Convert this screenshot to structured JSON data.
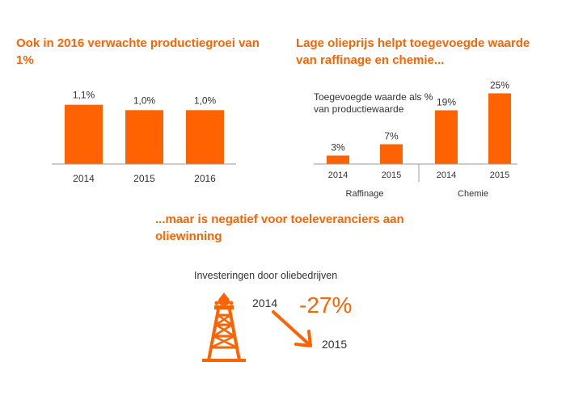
{
  "colors": {
    "accent": "#ff6200",
    "text": "#333333",
    "axis": "#999999"
  },
  "headings": {
    "growth": "Ook in 2016 verwachte productiegroei van 1%",
    "refining": "Lage olieprijs helpt toegevoegde waarde van raffinage en chemie...",
    "suppliers": "...maar is negatief voor toeleveranciers aan oliewinning"
  },
  "chart_data": [
    {
      "type": "bar",
      "categories": [
        "2014",
        "2015",
        "2016"
      ],
      "values": [
        1.1,
        1.0,
        1.0
      ],
      "data_labels": [
        "1,1%",
        "1,0%",
        "1,0%"
      ],
      "title": "Ook in 2016 verwachte productiegroei van 1%",
      "ylim": [
        0,
        1.5
      ],
      "grid": false,
      "color": "#ff6200"
    },
    {
      "type": "bar",
      "title": "Lage olieprijs helpt toegevoegde waarde van raffinage en chemie...",
      "ylabel": "Toegevoegde waarde als % van productiewaarde",
      "groups": [
        {
          "name": "Raffinage",
          "categories": [
            "2014",
            "2015"
          ],
          "values": [
            3,
            7
          ],
          "data_labels": [
            "3%",
            "7%"
          ]
        },
        {
          "name": "Chemie",
          "categories": [
            "2014",
            "2015"
          ],
          "values": [
            19,
            25
          ],
          "data_labels": [
            "19%",
            "25%"
          ]
        }
      ],
      "ylim": [
        0,
        30
      ],
      "grid": false,
      "color": "#ff6200"
    }
  ],
  "investment": {
    "title": "Investeringen door oliebedrijven",
    "from_year": "2014",
    "to_year": "2015",
    "change": "-27%",
    "icon": "oil-derrick-icon"
  }
}
